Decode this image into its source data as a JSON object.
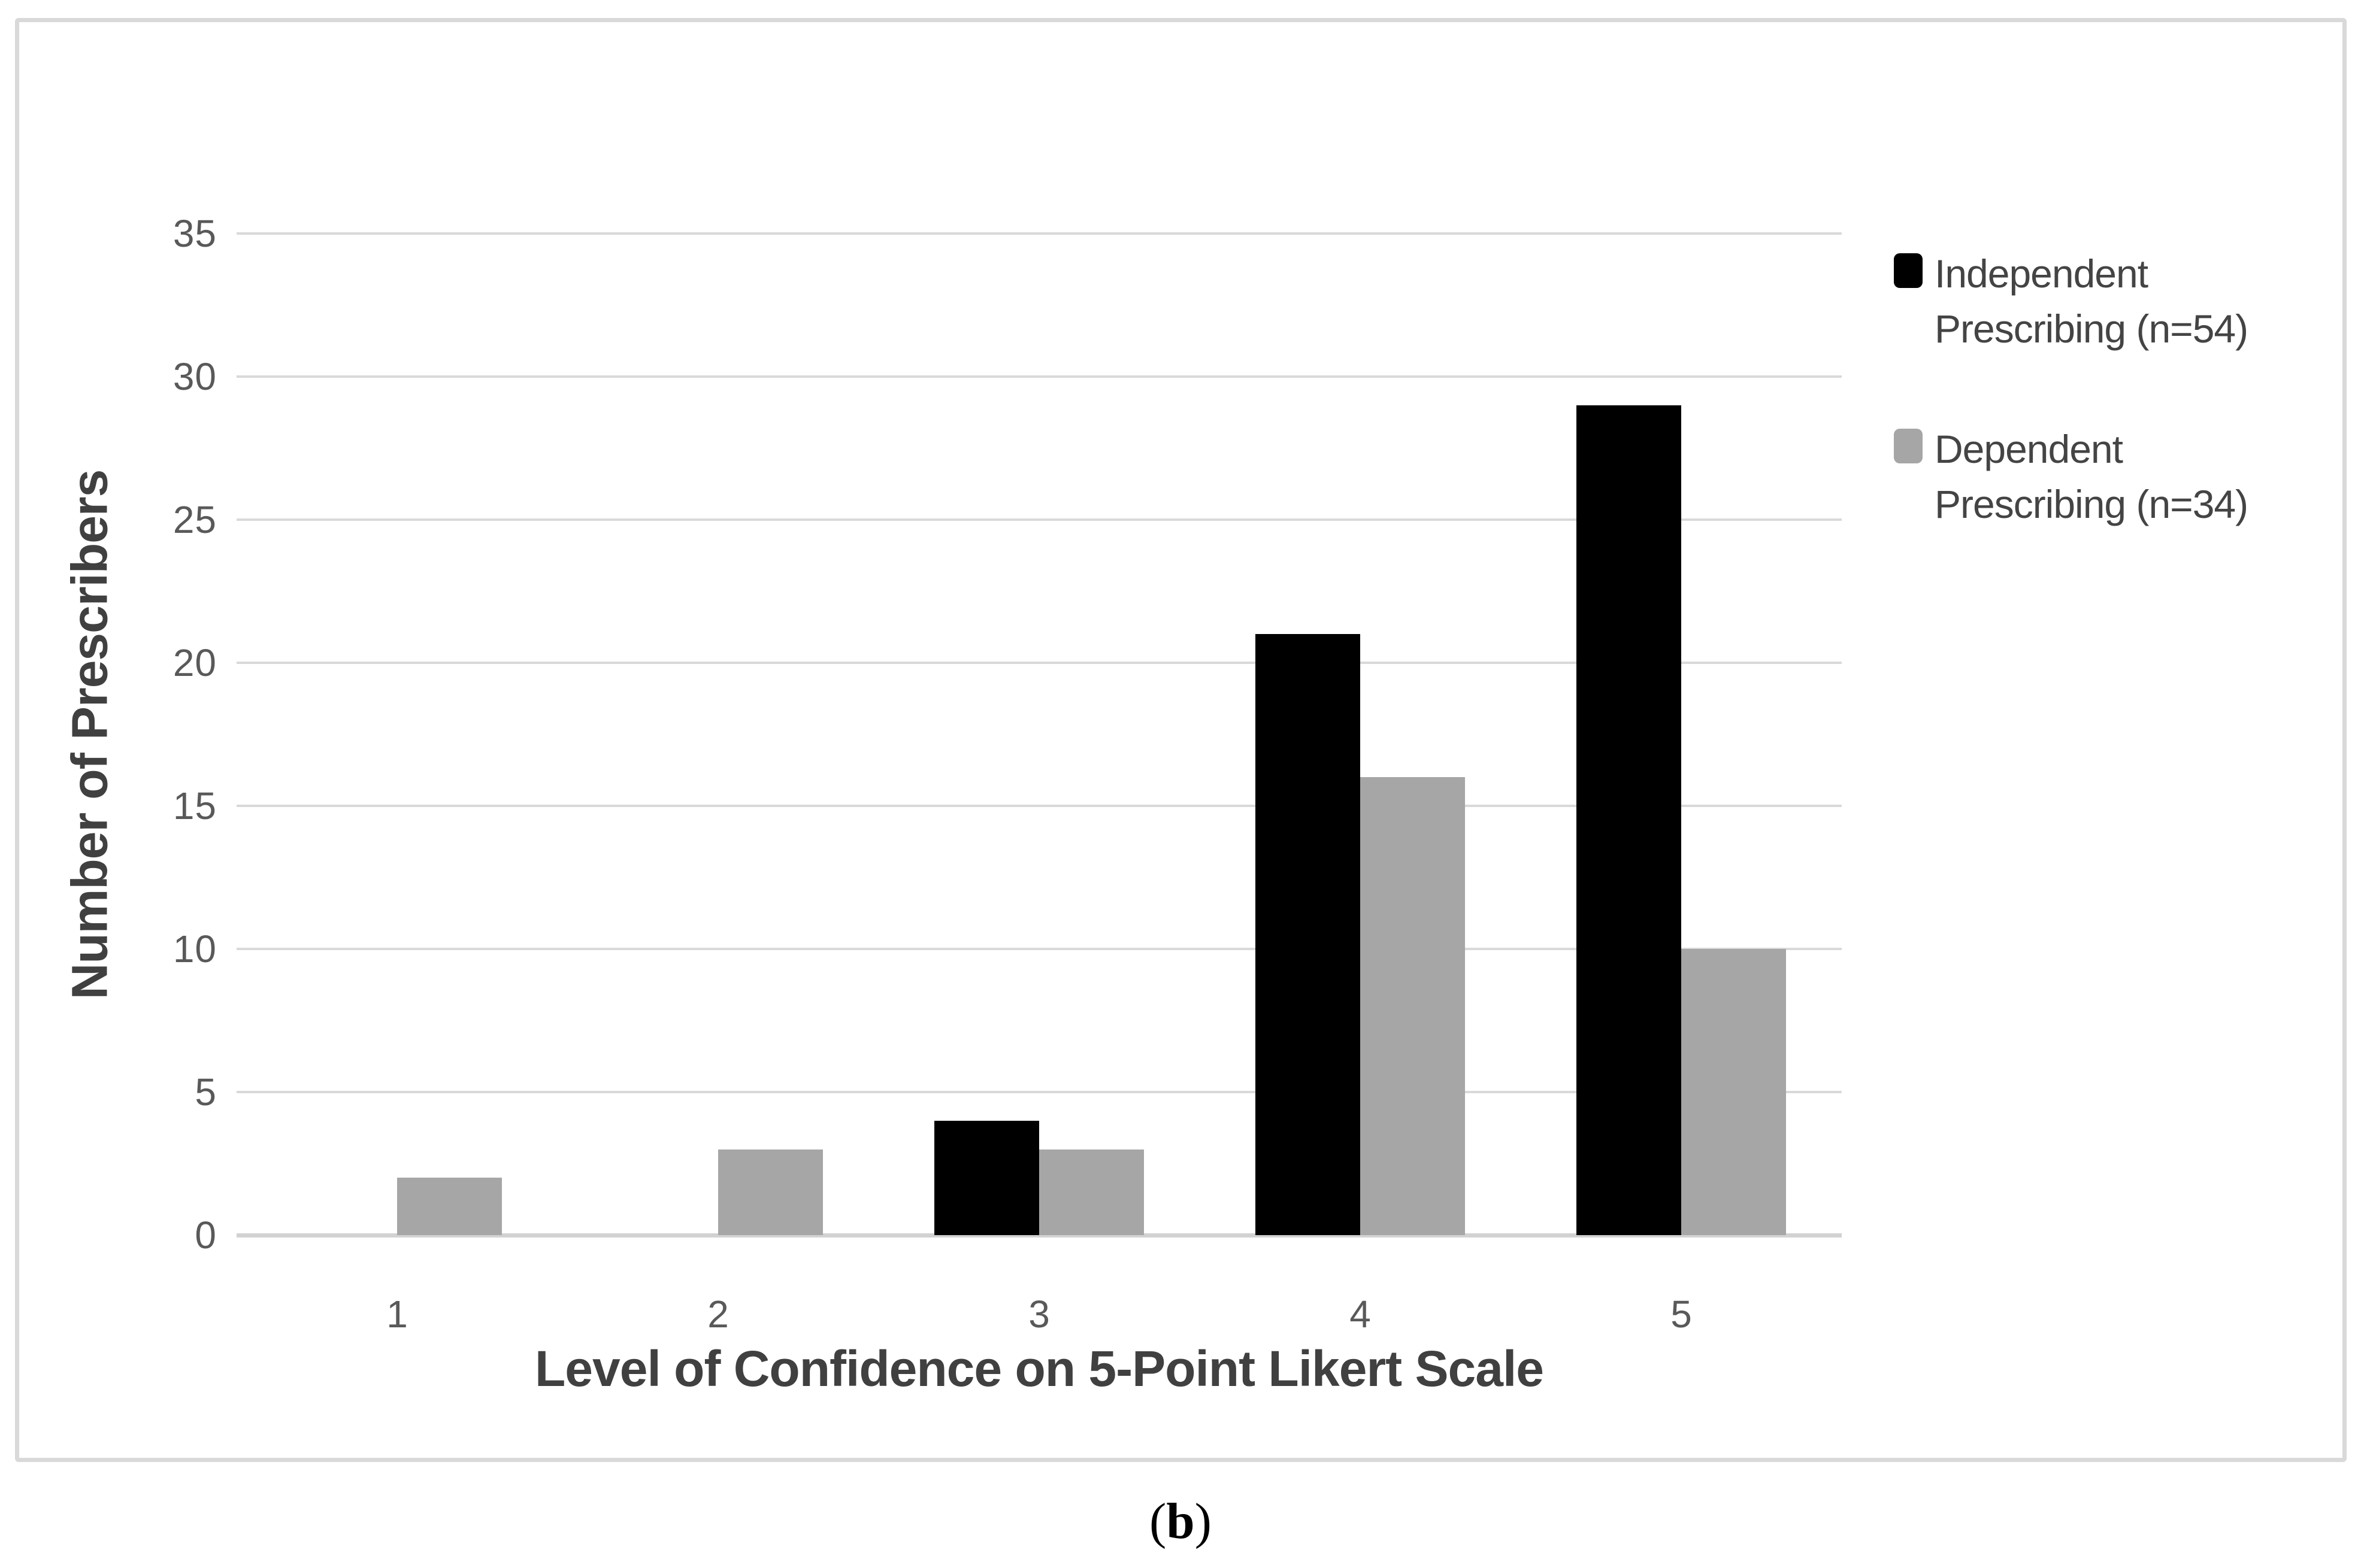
{
  "caption": {
    "open": "(",
    "letter": "b",
    "close": ")"
  },
  "chart_data": {
    "type": "bar",
    "title": "",
    "categories": [
      "1",
      "2",
      "3",
      "4",
      "5"
    ],
    "series": [
      {
        "name": "Independent Prescribing (n=54)",
        "color": "#000000",
        "values": [
          0,
          0,
          4,
          21,
          29
        ]
      },
      {
        "name": "Dependent Prescribing (n=34)",
        "color": "#a6a6a6",
        "values": [
          2,
          3,
          3,
          16,
          10
        ]
      }
    ],
    "xlabel": "Level of Confidence on 5-Point Likert Scale",
    "ylabel": "Number of Prescribers",
    "ylim": [
      0,
      35
    ],
    "yticks": [
      0,
      5,
      10,
      15,
      20,
      25,
      30,
      35
    ],
    "grid": true,
    "legend_position": "right",
    "legend_items": [
      {
        "lines": [
          "Independent",
          "Prescribing (n=54)"
        ],
        "color": "#000000"
      },
      {
        "lines": [
          "Dependent",
          "Prescribing (n=34)"
        ],
        "color": "#a6a6a6"
      }
    ]
  },
  "colors": {
    "bar_independent": "#000000",
    "bar_dependent": "#a6a6a6",
    "gridline": "#d9d9d9",
    "axis_line": "#d2d2d2",
    "tick_text": "#595959",
    "title_text": "#404040",
    "legend_text": "#444444",
    "frame_border": "#d9d9d9"
  }
}
